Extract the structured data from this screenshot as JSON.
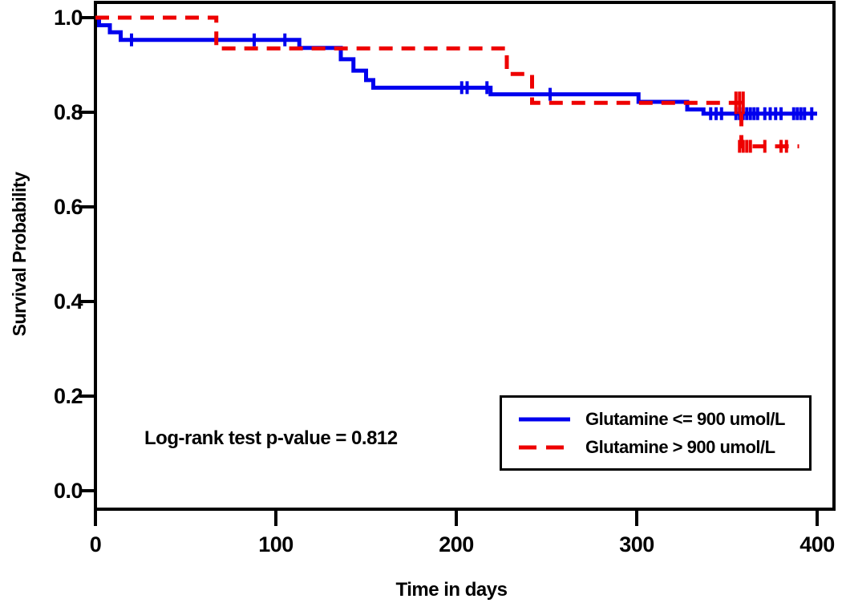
{
  "chart_data": {
    "type": "line",
    "subtype": "kaplan-meier-step",
    "title": "",
    "xlabel": "Time in days",
    "ylabel": "Survival Probability",
    "annotation": {
      "text": "Log-rank test p-value = 0.812"
    },
    "x_ticks": [
      0,
      100,
      200,
      300,
      400
    ],
    "y_ticks": [
      "1.0",
      "0.8",
      "0.6",
      "0.4",
      "0.2",
      "0.0"
    ],
    "y_tick_values": [
      1.0,
      0.8,
      0.6,
      0.4,
      0.2,
      0.0
    ],
    "xlim": [
      0,
      409
    ],
    "ylim": [
      0.0,
      1.07
    ],
    "grid": false,
    "legend_position": "bottom-right",
    "axis_color": "#000000",
    "background_color": "#ffffff",
    "series": [
      {
        "name": "Glutamine <= 900 umol/L",
        "color": "#0000EE",
        "style": "solid",
        "steps": [
          [
            0,
            1.0
          ],
          [
            2,
            0.984
          ],
          [
            8,
            0.969
          ],
          [
            14,
            0.953
          ],
          [
            113,
            0.936
          ],
          [
            136,
            0.912
          ],
          [
            143,
            0.888
          ],
          [
            150,
            0.868
          ],
          [
            154,
            0.852
          ],
          [
            219,
            0.838
          ],
          [
            301,
            0.822
          ],
          [
            328,
            0.806
          ],
          [
            337,
            0.797
          ]
        ],
        "end_day": 400,
        "censors": [
          [
            20,
            0.953
          ],
          [
            88,
            0.953
          ],
          [
            105,
            0.953
          ],
          [
            203,
            0.852
          ],
          [
            206,
            0.852
          ],
          [
            217,
            0.852
          ],
          [
            252,
            0.838
          ],
          [
            341,
            0.797
          ],
          [
            344,
            0.797
          ],
          [
            347,
            0.797
          ],
          [
            355,
            0.797
          ],
          [
            357,
            0.797
          ],
          [
            359,
            0.797
          ],
          [
            361,
            0.797
          ],
          [
            363,
            0.797
          ],
          [
            365,
            0.797
          ],
          [
            367,
            0.797
          ],
          [
            371,
            0.797
          ],
          [
            374,
            0.797
          ],
          [
            377,
            0.797
          ],
          [
            380,
            0.797
          ],
          [
            387,
            0.797
          ],
          [
            389,
            0.797
          ],
          [
            391,
            0.797
          ],
          [
            393,
            0.797
          ],
          [
            397,
            0.797
          ]
        ]
      },
      {
        "name": "Glutamine > 900 umol/L",
        "color": "#EE0000",
        "style": "dashed",
        "steps": [
          [
            0,
            1.0
          ],
          [
            67,
            0.935
          ],
          [
            228,
            0.881
          ],
          [
            242,
            0.82
          ],
          [
            358,
            0.728
          ]
        ],
        "end_day": 390,
        "censors": [
          [
            355,
            0.82,
            14
          ],
          [
            357,
            0.82,
            14
          ],
          [
            359,
            0.82,
            14
          ],
          [
            357,
            0.728
          ],
          [
            359,
            0.728
          ],
          [
            361,
            0.728
          ],
          [
            363,
            0.728
          ],
          [
            371,
            0.728
          ],
          [
            380,
            0.728
          ],
          [
            383,
            0.728
          ]
        ]
      }
    ]
  }
}
